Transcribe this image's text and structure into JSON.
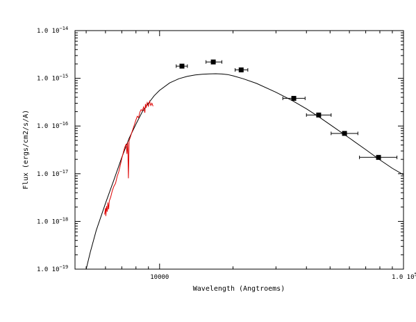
{
  "chart_data": {
    "type": "scatter",
    "title": "",
    "xlabel": "Wavelength (Angtroems)",
    "ylabel": "Flux (ergs/cm2/s/A)",
    "x_scale": "log",
    "y_scale": "log",
    "xlim": [
      4500,
      100000
    ],
    "ylim": [
      1e-19,
      1e-14
    ],
    "grid": false,
    "legend": "none",
    "x_ticks": [
      {
        "value": 10000,
        "label": "10000"
      },
      {
        "value": 100000,
        "label": "1.0 10",
        "exp": "5"
      }
    ],
    "y_ticks": [
      {
        "value": 1e-19,
        "label": "1.0 10",
        "exp": "−19"
      },
      {
        "value": 1e-18,
        "label": "1.0 10",
        "exp": "−18"
      },
      {
        "value": 1e-17,
        "label": "1.0 10",
        "exp": "−17"
      },
      {
        "value": 1e-16,
        "label": "1.0 10",
        "exp": "−16"
      },
      {
        "value": 1e-15,
        "label": "1.0 10",
        "exp": "−15"
      },
      {
        "value": 1e-14,
        "label": "1.0 10",
        "exp": "−14"
      }
    ],
    "series": [
      {
        "kind": "photometry",
        "color": "#000000",
        "points": [
          {
            "x": 12350,
            "y": 1.8e-15,
            "xerr_low": 11700,
            "xerr_high": 13000
          },
          {
            "x": 16600,
            "y": 2.2e-15,
            "xerr_low": 15500,
            "xerr_high": 18000
          },
          {
            "x": 21600,
            "y": 1.5e-15,
            "xerr_low": 20400,
            "xerr_high": 23000
          },
          {
            "x": 35500,
            "y": 3.8e-16,
            "xerr_low": 32000,
            "xerr_high": 39500
          },
          {
            "x": 44900,
            "y": 1.7e-16,
            "xerr_low": 40000,
            "xerr_high": 50500
          },
          {
            "x": 57300,
            "y": 7e-17,
            "xerr_low": 50500,
            "xerr_high": 65000
          },
          {
            "x": 79000,
            "y": 2.2e-17,
            "xerr_low": 66000,
            "xerr_high": 94000
          }
        ]
      },
      {
        "kind": "model",
        "color": "#000000",
        "x": [
          5000,
          5200,
          5500,
          6000,
          6500,
          7000,
          7500,
          8000,
          8500,
          9000,
          9500,
          10000,
          11000,
          12000,
          13000,
          14000,
          15000,
          16000,
          17000,
          18000,
          19000,
          20000,
          22000,
          25000,
          30000,
          35000,
          40000,
          45000,
          50000,
          60000,
          70000,
          80000,
          90000,
          100000
        ],
        "y": [
          1e-19,
          2.3e-19,
          6.5e-19,
          2.4e-18,
          7.5e-18,
          2.2e-17,
          5.5e-17,
          1.1e-16,
          2e-16,
          3e-16,
          4.3e-16,
          5.6e-16,
          8e-16,
          9.8e-16,
          1.1e-15,
          1.18e-15,
          1.22e-15,
          1.24e-15,
          1.25e-15,
          1.23e-15,
          1.2e-15,
          1.13e-15,
          9.8e-16,
          7.8e-16,
          5.1e-16,
          3.4e-16,
          2.3e-16,
          1.55e-16,
          1.07e-16,
          5.6e-17,
          3.2e-17,
          1.95e-17,
          1.3e-17,
          9.5e-18
        ]
      },
      {
        "kind": "spectrum",
        "color": "#dd0000",
        "x": [
          5950,
          6000,
          6020,
          6060,
          6100,
          6140,
          6180,
          6220,
          6300,
          6400,
          6500,
          6600,
          6700,
          6800,
          6900,
          7000,
          7100,
          7200,
          7300,
          7350,
          7400,
          7450,
          7500,
          7600,
          7700,
          7800,
          7900,
          8000,
          8100,
          8200,
          8300,
          8400,
          8500,
          8600,
          8700,
          8750,
          8800,
          8900,
          9000,
          9100,
          9200,
          9300,
          9400
        ],
        "y": [
          1.4e-18,
          1.9e-18,
          1.3e-18,
          2.1e-18,
          1.6e-18,
          2.5e-18,
          1.8e-18,
          2.7e-18,
          3.2e-18,
          4.4e-18,
          5.5e-18,
          6.3e-18,
          8.8e-18,
          1.1e-17,
          1.5e-17,
          2.1e-17,
          2.8e-17,
          3.6e-17,
          4.2e-17,
          2.6e-17,
          4.6e-17,
          8e-18,
          4.9e-17,
          6e-17,
          7.4e-17,
          9e-17,
          1.1e-16,
          1.35e-16,
          1.6e-16,
          1.5e-16,
          1.95e-16,
          2.2e-16,
          2.1e-16,
          2.5e-16,
          1.9e-16,
          2.9e-16,
          2.4e-16,
          3.1e-16,
          2.6e-16,
          3.3e-16,
          2.7e-16,
          3e-16,
          2.6e-16
        ]
      }
    ]
  }
}
